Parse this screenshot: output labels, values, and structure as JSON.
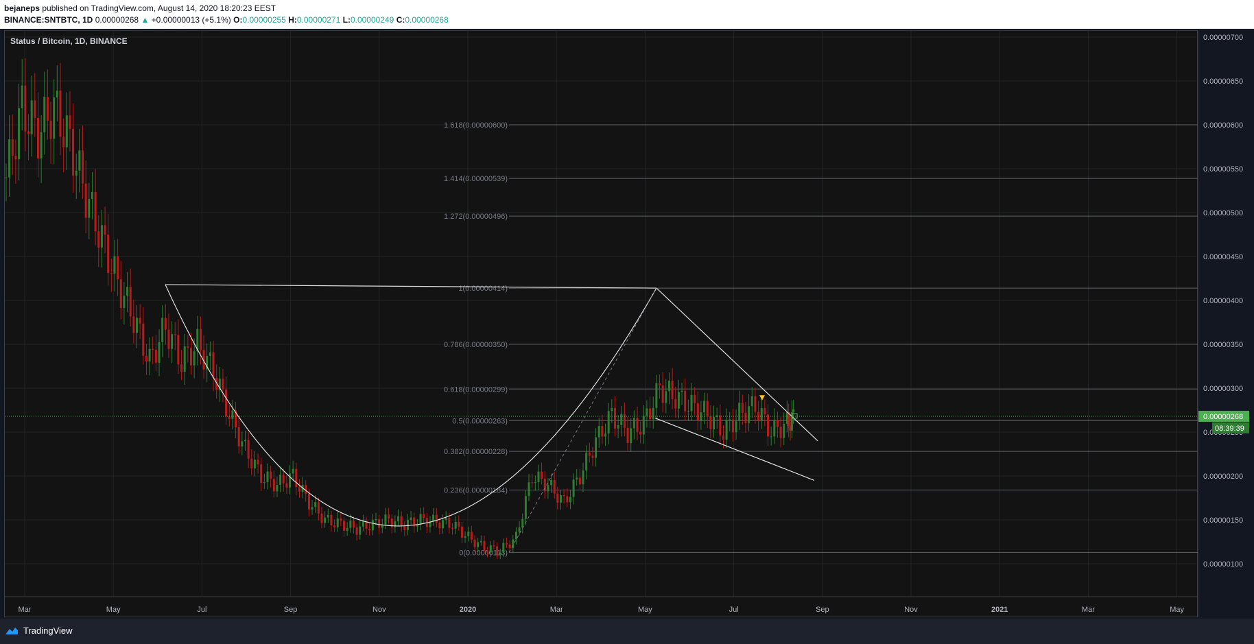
{
  "header": {
    "author": "bejaneps",
    "published_text": "published on TradingView.com, August 14, 2020 18:20:23 EEST",
    "symbol": "BINANCE:SNTBTC, 1D",
    "last": "0.00000268",
    "change": "+0.00000013 (+5.1%)",
    "open_label": "O:",
    "open": "0.00000255",
    "high_label": "H:",
    "high": "0.00000271",
    "low_label": "L:",
    "low": "0.00000249",
    "close_label": "C:",
    "close": "0.00000268"
  },
  "footer": {
    "brand": "TradingView"
  },
  "colors": {
    "up": "#26a69a",
    "down": "#ef5350",
    "accent": "#4caf50",
    "drawing": "#e0e0e0"
  },
  "chart_data": {
    "type": "candlestick",
    "title": "Status / Bitcoin, 1D, BINANCE",
    "x_labels": [
      "Mar",
      "May",
      "Jul",
      "Sep",
      "Nov",
      "2020",
      "Mar",
      "May",
      "Jul",
      "Sep",
      "Nov",
      "2021",
      "Mar",
      "May"
    ],
    "y_ticks": [
      "0.00000700",
      "0.00000650",
      "0.00000600",
      "0.00000550",
      "0.00000500",
      "0.00000450",
      "0.00000400",
      "0.00000350",
      "0.00000300",
      "0.00000250",
      "0.00000200",
      "0.00000150",
      "0.00000100"
    ],
    "y_values": [
      700,
      650,
      600,
      550,
      500,
      450,
      400,
      350,
      300,
      250,
      200,
      150,
      100
    ],
    "y_unit_scale": "1e-8",
    "ylim": [
      40,
      705
    ],
    "last_price_label": "0.00000268",
    "last_price": 268,
    "countdown": "08:39:39",
    "fib_levels": [
      {
        "label": "1.618(0.00000600)",
        "value": 600
      },
      {
        "label": "1.414(0.00000539)",
        "value": 539
      },
      {
        "label": "1.272(0.00000496)",
        "value": 496
      },
      {
        "label": "1(0.00000414)",
        "value": 414
      },
      {
        "label": "0.786(0.00000350)",
        "value": 350
      },
      {
        "label": "0.618(0.00000299)",
        "value": 299
      },
      {
        "label": "0.5(0.00000263)",
        "value": 263
      },
      {
        "label": "0.382(0.00000228)",
        "value": 228
      },
      {
        "label": "0.236(0.00000184)",
        "value": 184
      },
      {
        "label": "0(0.00000113)",
        "value": 113
      }
    ],
    "series": [
      {
        "name": "",
        "points": [
          [
            0,
            540
          ],
          [
            20,
            620
          ],
          [
            40,
            590
          ],
          [
            60,
            620
          ],
          [
            80,
            580
          ],
          [
            100,
            520
          ],
          [
            120,
            470
          ],
          [
            140,
            420
          ],
          [
            160,
            380
          ],
          [
            180,
            330
          ],
          [
            200,
            370
          ],
          [
            220,
            330
          ],
          [
            240,
            350
          ],
          [
            260,
            320
          ],
          [
            280,
            270
          ],
          [
            300,
            230
          ],
          [
            320,
            200
          ],
          [
            340,
            190
          ],
          [
            360,
            200
          ],
          [
            380,
            170
          ],
          [
            400,
            150
          ],
          [
            420,
            145
          ],
          [
            440,
            140
          ],
          [
            460,
            145
          ],
          [
            480,
            150
          ],
          [
            500,
            145
          ],
          [
            520,
            150
          ],
          [
            540,
            148
          ],
          [
            560,
            145
          ],
          [
            580,
            130
          ],
          [
            600,
            118
          ],
          [
            620,
            115
          ],
          [
            640,
            130
          ],
          [
            660,
            200
          ],
          [
            680,
            190
          ],
          [
            700,
            170
          ],
          [
            720,
            200
          ],
          [
            740,
            240
          ],
          [
            760,
            270
          ],
          [
            780,
            250
          ],
          [
            800,
            260
          ],
          [
            820,
            300
          ],
          [
            840,
            290
          ],
          [
            860,
            280
          ],
          [
            880,
            270
          ],
          [
            900,
            250
          ],
          [
            920,
            270
          ],
          [
            940,
            280
          ],
          [
            960,
            250
          ],
          [
            980,
            260
          ],
          [
            990,
            268
          ]
        ]
      }
    ]
  }
}
